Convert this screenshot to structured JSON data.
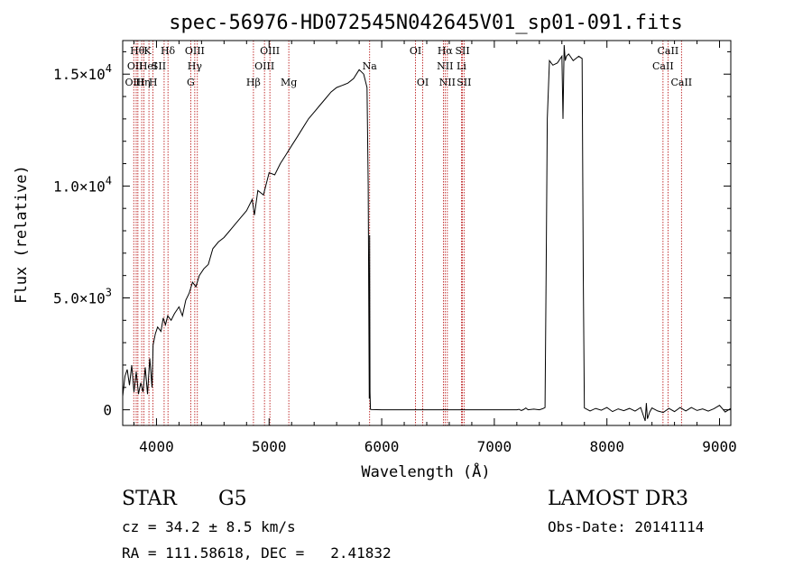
{
  "chart_data": {
    "type": "line",
    "title": "spec-56976-HD072545N042645V01_sp01-091.fits",
    "xlabel": "Wavelength (Å)",
    "ylabel": "Flux (relative)",
    "xlim": [
      3700,
      9100
    ],
    "ylim": [
      -700,
      16500
    ],
    "x_ticks": [
      4000,
      5000,
      6000,
      7000,
      8000,
      9000
    ],
    "x_tick_labels": [
      "4000",
      "5000",
      "6000",
      "7000",
      "8000",
      "9000"
    ],
    "y_ticks": [
      0,
      5000,
      10000,
      15000
    ],
    "y_tick_labels": [
      {
        "mantissa": "0",
        "exp": ""
      },
      {
        "mantissa": "5.0×10",
        "exp": "3"
      },
      {
        "mantissa": "1.0×10",
        "exp": "4"
      },
      {
        "mantissa": "1.5×10",
        "exp": "4"
      }
    ],
    "series": [
      {
        "name": "flux",
        "x": [
          3700,
          3720,
          3740,
          3760,
          3780,
          3800,
          3820,
          3840,
          3860,
          3880,
          3900,
          3920,
          3940,
          3960,
          3970,
          3990,
          4010,
          4040,
          4060,
          4080,
          4100,
          4130,
          4160,
          4200,
          4230,
          4260,
          4290,
          4320,
          4350,
          4380,
          4420,
          4460,
          4500,
          4550,
          4600,
          4650,
          4700,
          4750,
          4800,
          4850,
          4870,
          4900,
          4950,
          5000,
          5050,
          5100,
          5150,
          5200,
          5250,
          5300,
          5350,
          5400,
          5450,
          5500,
          5550,
          5600,
          5650,
          5700,
          5750,
          5800,
          5840,
          5870,
          5880,
          5890,
          5893,
          5896,
          5900,
          5910,
          6000,
          6500,
          7000,
          7200,
          7220,
          7240,
          7260,
          7280,
          7300,
          7350,
          7400,
          7430,
          7450,
          7460,
          7470,
          7490,
          7520,
          7560,
          7600,
          7610,
          7620,
          7630,
          7640,
          7660,
          7700,
          7750,
          7780,
          7790,
          7800,
          7850,
          7900,
          7950,
          8000,
          8050,
          8100,
          8150,
          8200,
          8250,
          8300,
          8340,
          8350,
          8360,
          8380,
          8400,
          8450,
          8500,
          8550,
          8600,
          8650,
          8700,
          8750,
          8800,
          8850,
          8900,
          8950,
          9000,
          9050,
          9100
        ],
        "values": [
          600,
          1500,
          1800,
          1100,
          2000,
          800,
          1700,
          700,
          1200,
          800,
          1900,
          700,
          2300,
          1000,
          2900,
          3400,
          3700,
          3500,
          4100,
          3800,
          4200,
          4000,
          4300,
          4600,
          4200,
          4900,
          5200,
          5700,
          5500,
          6000,
          6300,
          6500,
          7200,
          7500,
          7700,
          8000,
          8300,
          8600,
          8900,
          9400,
          8700,
          9800,
          9600,
          10600,
          10500,
          11000,
          11400,
          11800,
          12200,
          12600,
          13000,
          13300,
          13600,
          13900,
          14200,
          14400,
          14500,
          14600,
          14800,
          15200,
          15000,
          14400,
          10000,
          500,
          7800,
          800,
          20,
          10,
          0,
          0,
          0,
          0,
          20,
          -30,
          10,
          80,
          0,
          30,
          0,
          50,
          100,
          6000,
          13000,
          15600,
          15400,
          15500,
          15800,
          13000,
          16300,
          15600,
          15800,
          15900,
          15600,
          15800,
          15700,
          6000,
          80,
          -50,
          60,
          -20,
          100,
          -80,
          40,
          -40,
          60,
          -60,
          100,
          -500,
          300,
          -400,
          -100,
          80,
          -50,
          -120,
          60,
          -80,
          100,
          -50,
          100,
          -30,
          40,
          -60,
          50,
          200,
          -100,
          60
        ]
      }
    ],
    "line_labels": [
      {
        "x": 3830,
        "text": "Hθ",
        "row": 1
      },
      {
        "x": 3920,
        "text": "K",
        "row": 1
      },
      {
        "x": 4101,
        "text": "Hδ",
        "row": 1
      },
      {
        "x": 4340,
        "text": "OIII",
        "row": 1
      },
      {
        "x": 5007,
        "text": "OIII",
        "row": 1
      },
      {
        "x": 6300,
        "text": "OI",
        "row": 1
      },
      {
        "x": 6563,
        "text": "Hα",
        "row": 1
      },
      {
        "x": 6717,
        "text": "SII",
        "row": 1
      },
      {
        "x": 8542,
        "text": "CaII",
        "row": 1
      },
      {
        "x": 3810,
        "text": "OII",
        "row": 2
      },
      {
        "x": 3925,
        "text": "HeI",
        "row": 2
      },
      {
        "x": 4020,
        "text": "SII",
        "row": 2
      },
      {
        "x": 4340,
        "text": "Hγ",
        "row": 2
      },
      {
        "x": 4959,
        "text": "OIII",
        "row": 2
      },
      {
        "x": 5893,
        "text": "Na",
        "row": 2
      },
      {
        "x": 6563,
        "text": "NII",
        "row": 2
      },
      {
        "x": 6708,
        "text": "Li",
        "row": 2
      },
      {
        "x": 8498,
        "text": "CaII",
        "row": 2
      },
      {
        "x": 3808,
        "text": "OIII",
        "row": 3
      },
      {
        "x": 3880,
        "text": "Hη",
        "row": 3
      },
      {
        "x": 3970,
        "text": "H",
        "row": 3
      },
      {
        "x": 4304,
        "text": "G",
        "row": 3
      },
      {
        "x": 4861,
        "text": "Hβ",
        "row": 3
      },
      {
        "x": 5175,
        "text": "Mg",
        "row": 3
      },
      {
        "x": 6364,
        "text": "OI",
        "row": 3
      },
      {
        "x": 6583,
        "text": "NII",
        "row": 3
      },
      {
        "x": 6731,
        "text": "SII",
        "row": 3
      },
      {
        "x": 8662,
        "text": "CaII",
        "row": 3
      }
    ],
    "reference_lines": [
      3798,
      3820,
      3835,
      3869,
      3889,
      3933,
      3968,
      4068,
      4102,
      4304,
      4340,
      4363,
      4861,
      4959,
      5007,
      5175,
      5893,
      6300,
      6364,
      6548,
      6563,
      6583,
      6708,
      6717,
      6731,
      8498,
      8542,
      8662
    ],
    "grid": false,
    "legend": "none"
  },
  "info": {
    "object_class": "STAR",
    "subclass": "G5",
    "survey": "LAMOST DR3",
    "redshift": "cz = 34.2 ± 8.5 km/s",
    "obs_date": "Obs-Date: 20141114",
    "coords": "RA = 111.58618, DEC =   2.41832"
  },
  "colors": {
    "line": "#000000",
    "reference": "#b30000",
    "background": "#ffffff"
  }
}
